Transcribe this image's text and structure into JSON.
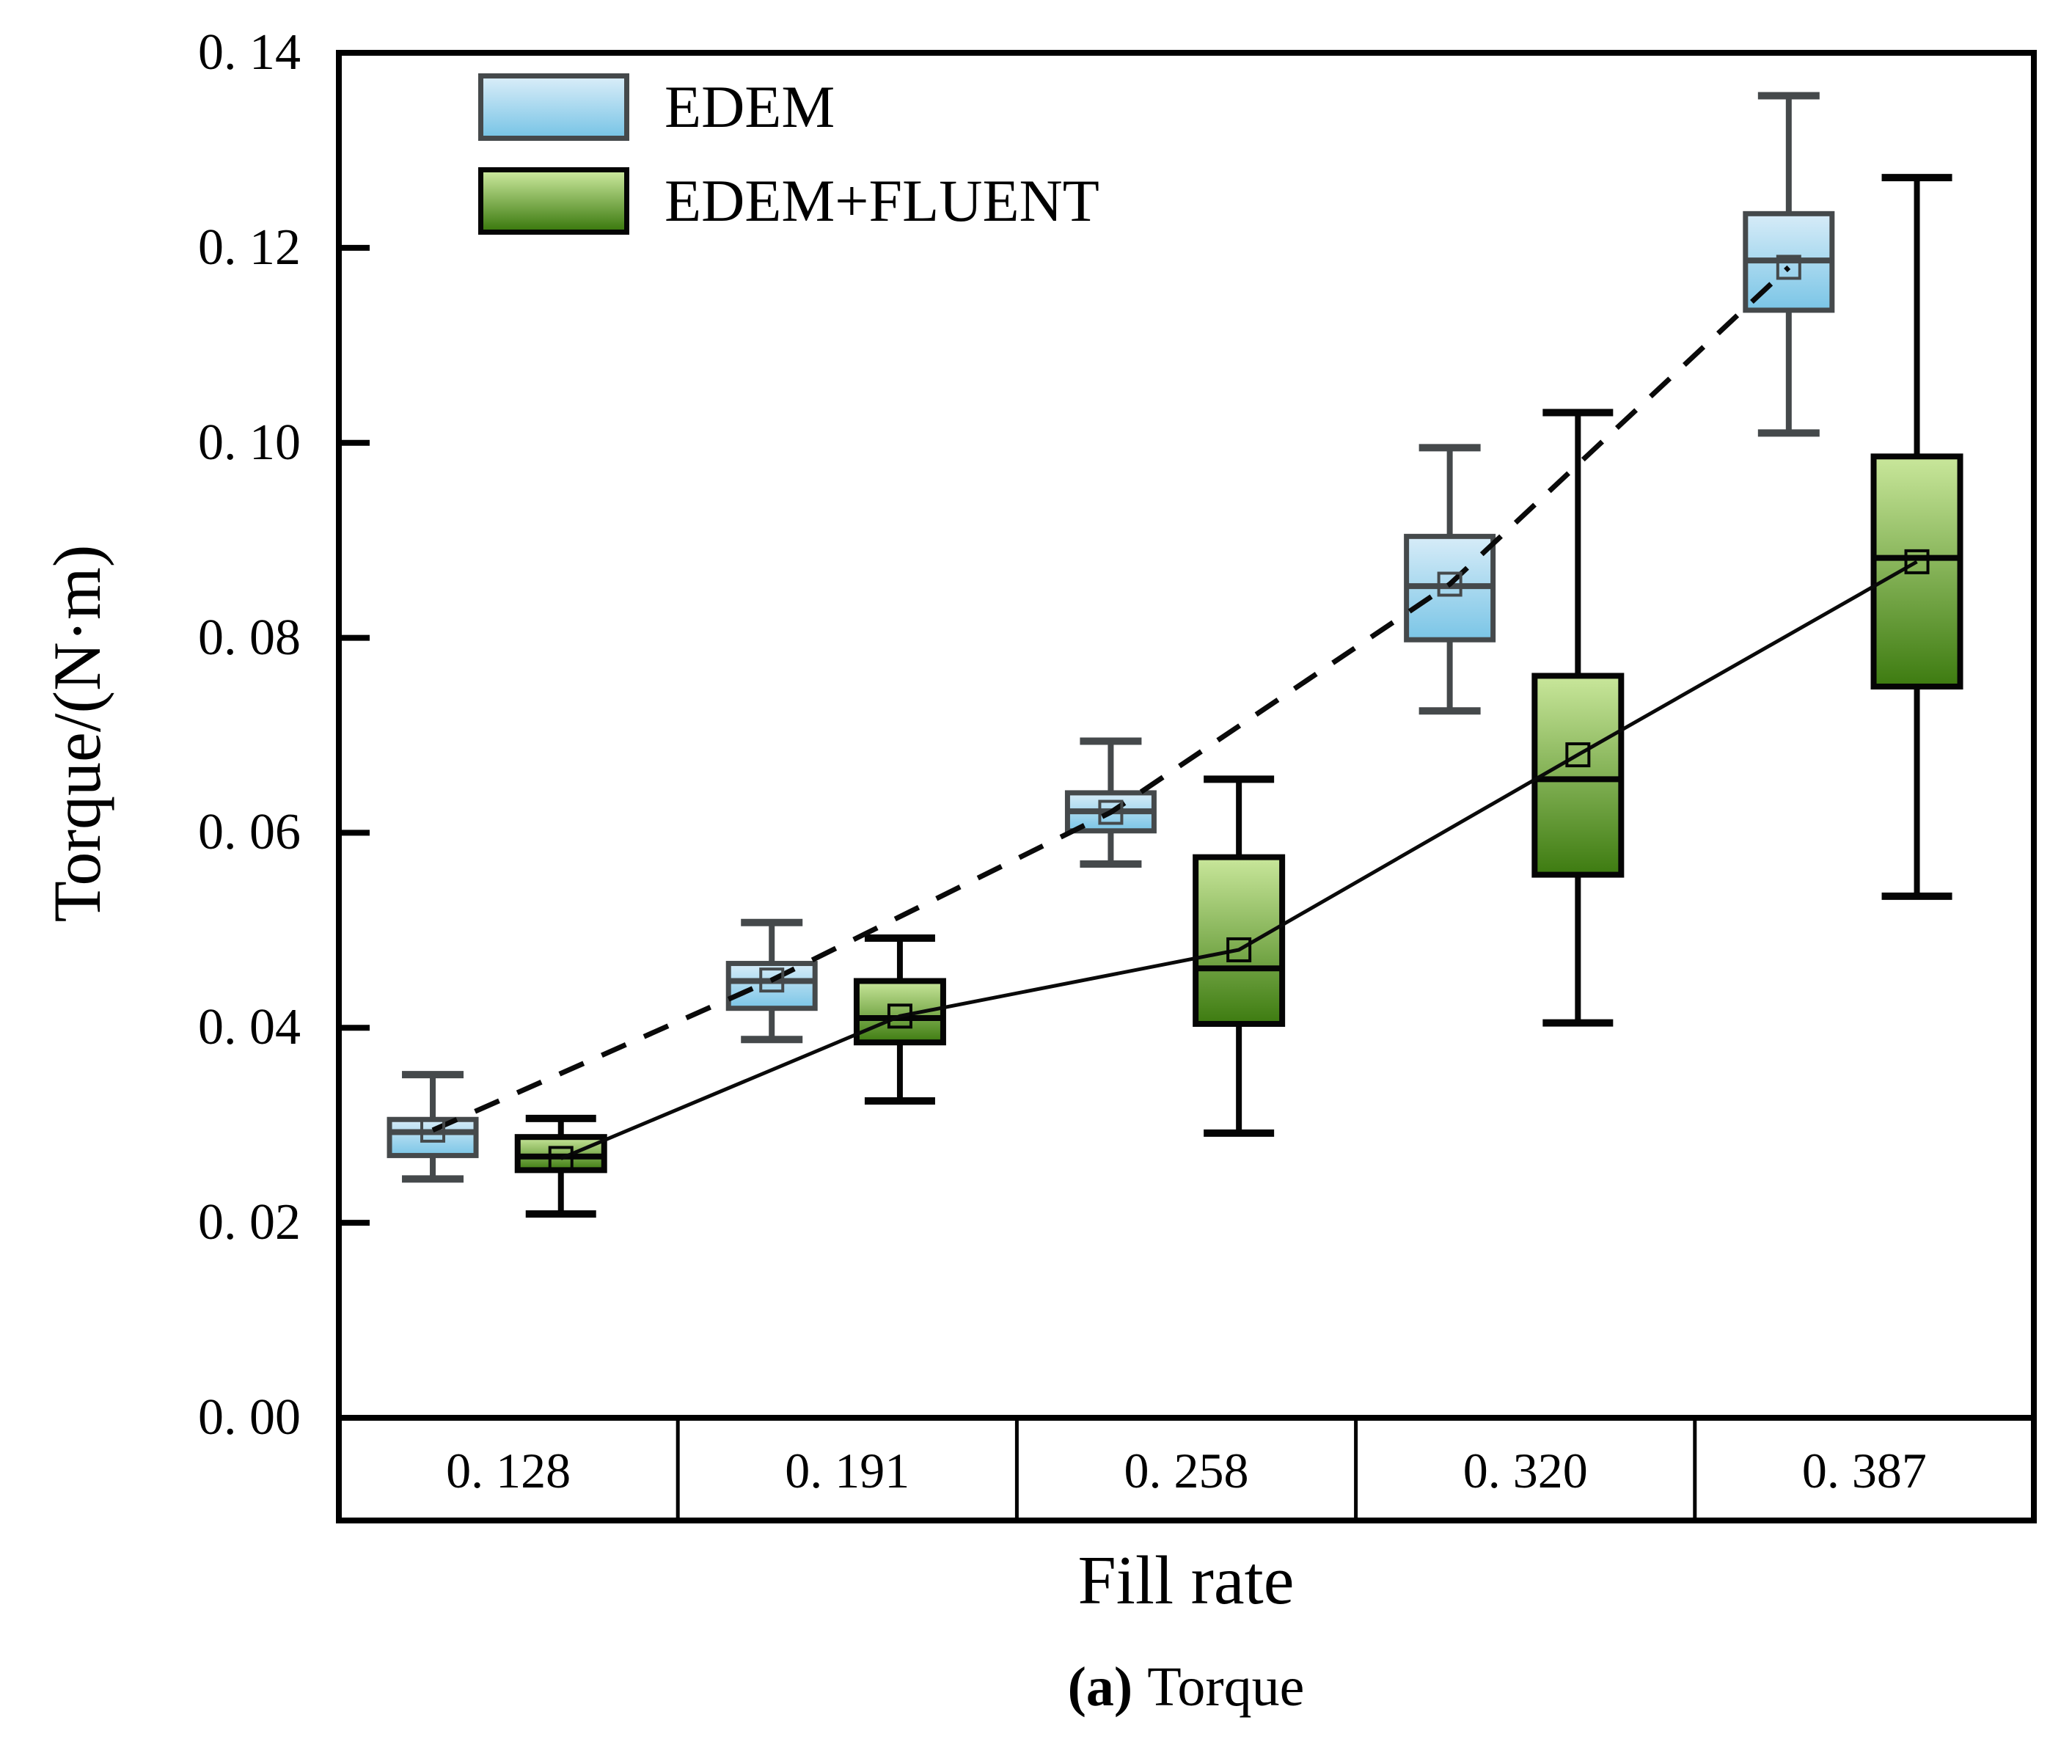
{
  "chart_data": {
    "type": "boxplot",
    "xlabel": "Fill rate",
    "ylabel": "Torque/(N·m)",
    "caption": {
      "label": "(a)",
      "text": "Torque"
    },
    "ylim": [
      0.0,
      0.14
    ],
    "ytick_labels": [
      "0. 00",
      "0. 02",
      "0. 04",
      "0. 06",
      "0. 08",
      "0. 10",
      "0. 12",
      "0. 14"
    ],
    "ytick_values": [
      0.0,
      0.02,
      0.04,
      0.06,
      0.08,
      0.1,
      0.12,
      0.14
    ],
    "categories": [
      "0. 128",
      "0. 191",
      "0. 258",
      "0. 320",
      "0. 387"
    ],
    "grid": "off",
    "legend_position": "top-left-inside",
    "axis_color": "#000000",
    "series": [
      {
        "name": "EDEM",
        "line_style": "dashed",
        "fill_top": "#d7ecf8",
        "fill_bottom": "#7ac5e6",
        "stroke": "#45494b",
        "boxes": [
          {
            "min": 0.0245,
            "q1": 0.0269,
            "median": 0.0293,
            "q3": 0.0306,
            "max": 0.0352,
            "mean": 0.0295
          },
          {
            "min": 0.0388,
            "q1": 0.042,
            "median": 0.0448,
            "q3": 0.0466,
            "max": 0.0508,
            "mean": 0.0449
          },
          {
            "min": 0.0568,
            "q1": 0.0602,
            "median": 0.0622,
            "q3": 0.0641,
            "max": 0.0694,
            "mean": 0.0621
          },
          {
            "min": 0.0725,
            "q1": 0.0798,
            "median": 0.0853,
            "q3": 0.0904,
            "max": 0.0995,
            "mean": 0.0855
          },
          {
            "min": 0.101,
            "q1": 0.1136,
            "median": 0.1187,
            "q3": 0.1235,
            "max": 0.1356,
            "mean": 0.118
          }
        ]
      },
      {
        "name": "EDEM+FLUENT",
        "line_style": "solid",
        "fill_top": "#c9e79b",
        "fill_bottom": "#3d7b10",
        "stroke": "#050505",
        "boxes": [
          {
            "min": 0.0209,
            "q1": 0.0254,
            "median": 0.0268,
            "q3": 0.0288,
            "max": 0.0307,
            "mean": 0.0266
          },
          {
            "min": 0.0325,
            "q1": 0.0385,
            "median": 0.041,
            "q3": 0.0448,
            "max": 0.0492,
            "mean": 0.0412
          },
          {
            "min": 0.0292,
            "q1": 0.0404,
            "median": 0.0461,
            "q3": 0.0575,
            "max": 0.0655,
            "mean": 0.048
          },
          {
            "min": 0.0405,
            "q1": 0.0557,
            "median": 0.0655,
            "q3": 0.0761,
            "max": 0.1031,
            "mean": 0.068
          },
          {
            "min": 0.0535,
            "q1": 0.075,
            "median": 0.0882,
            "q3": 0.0986,
            "max": 0.1272,
            "mean": 0.0878
          }
        ]
      }
    ]
  }
}
